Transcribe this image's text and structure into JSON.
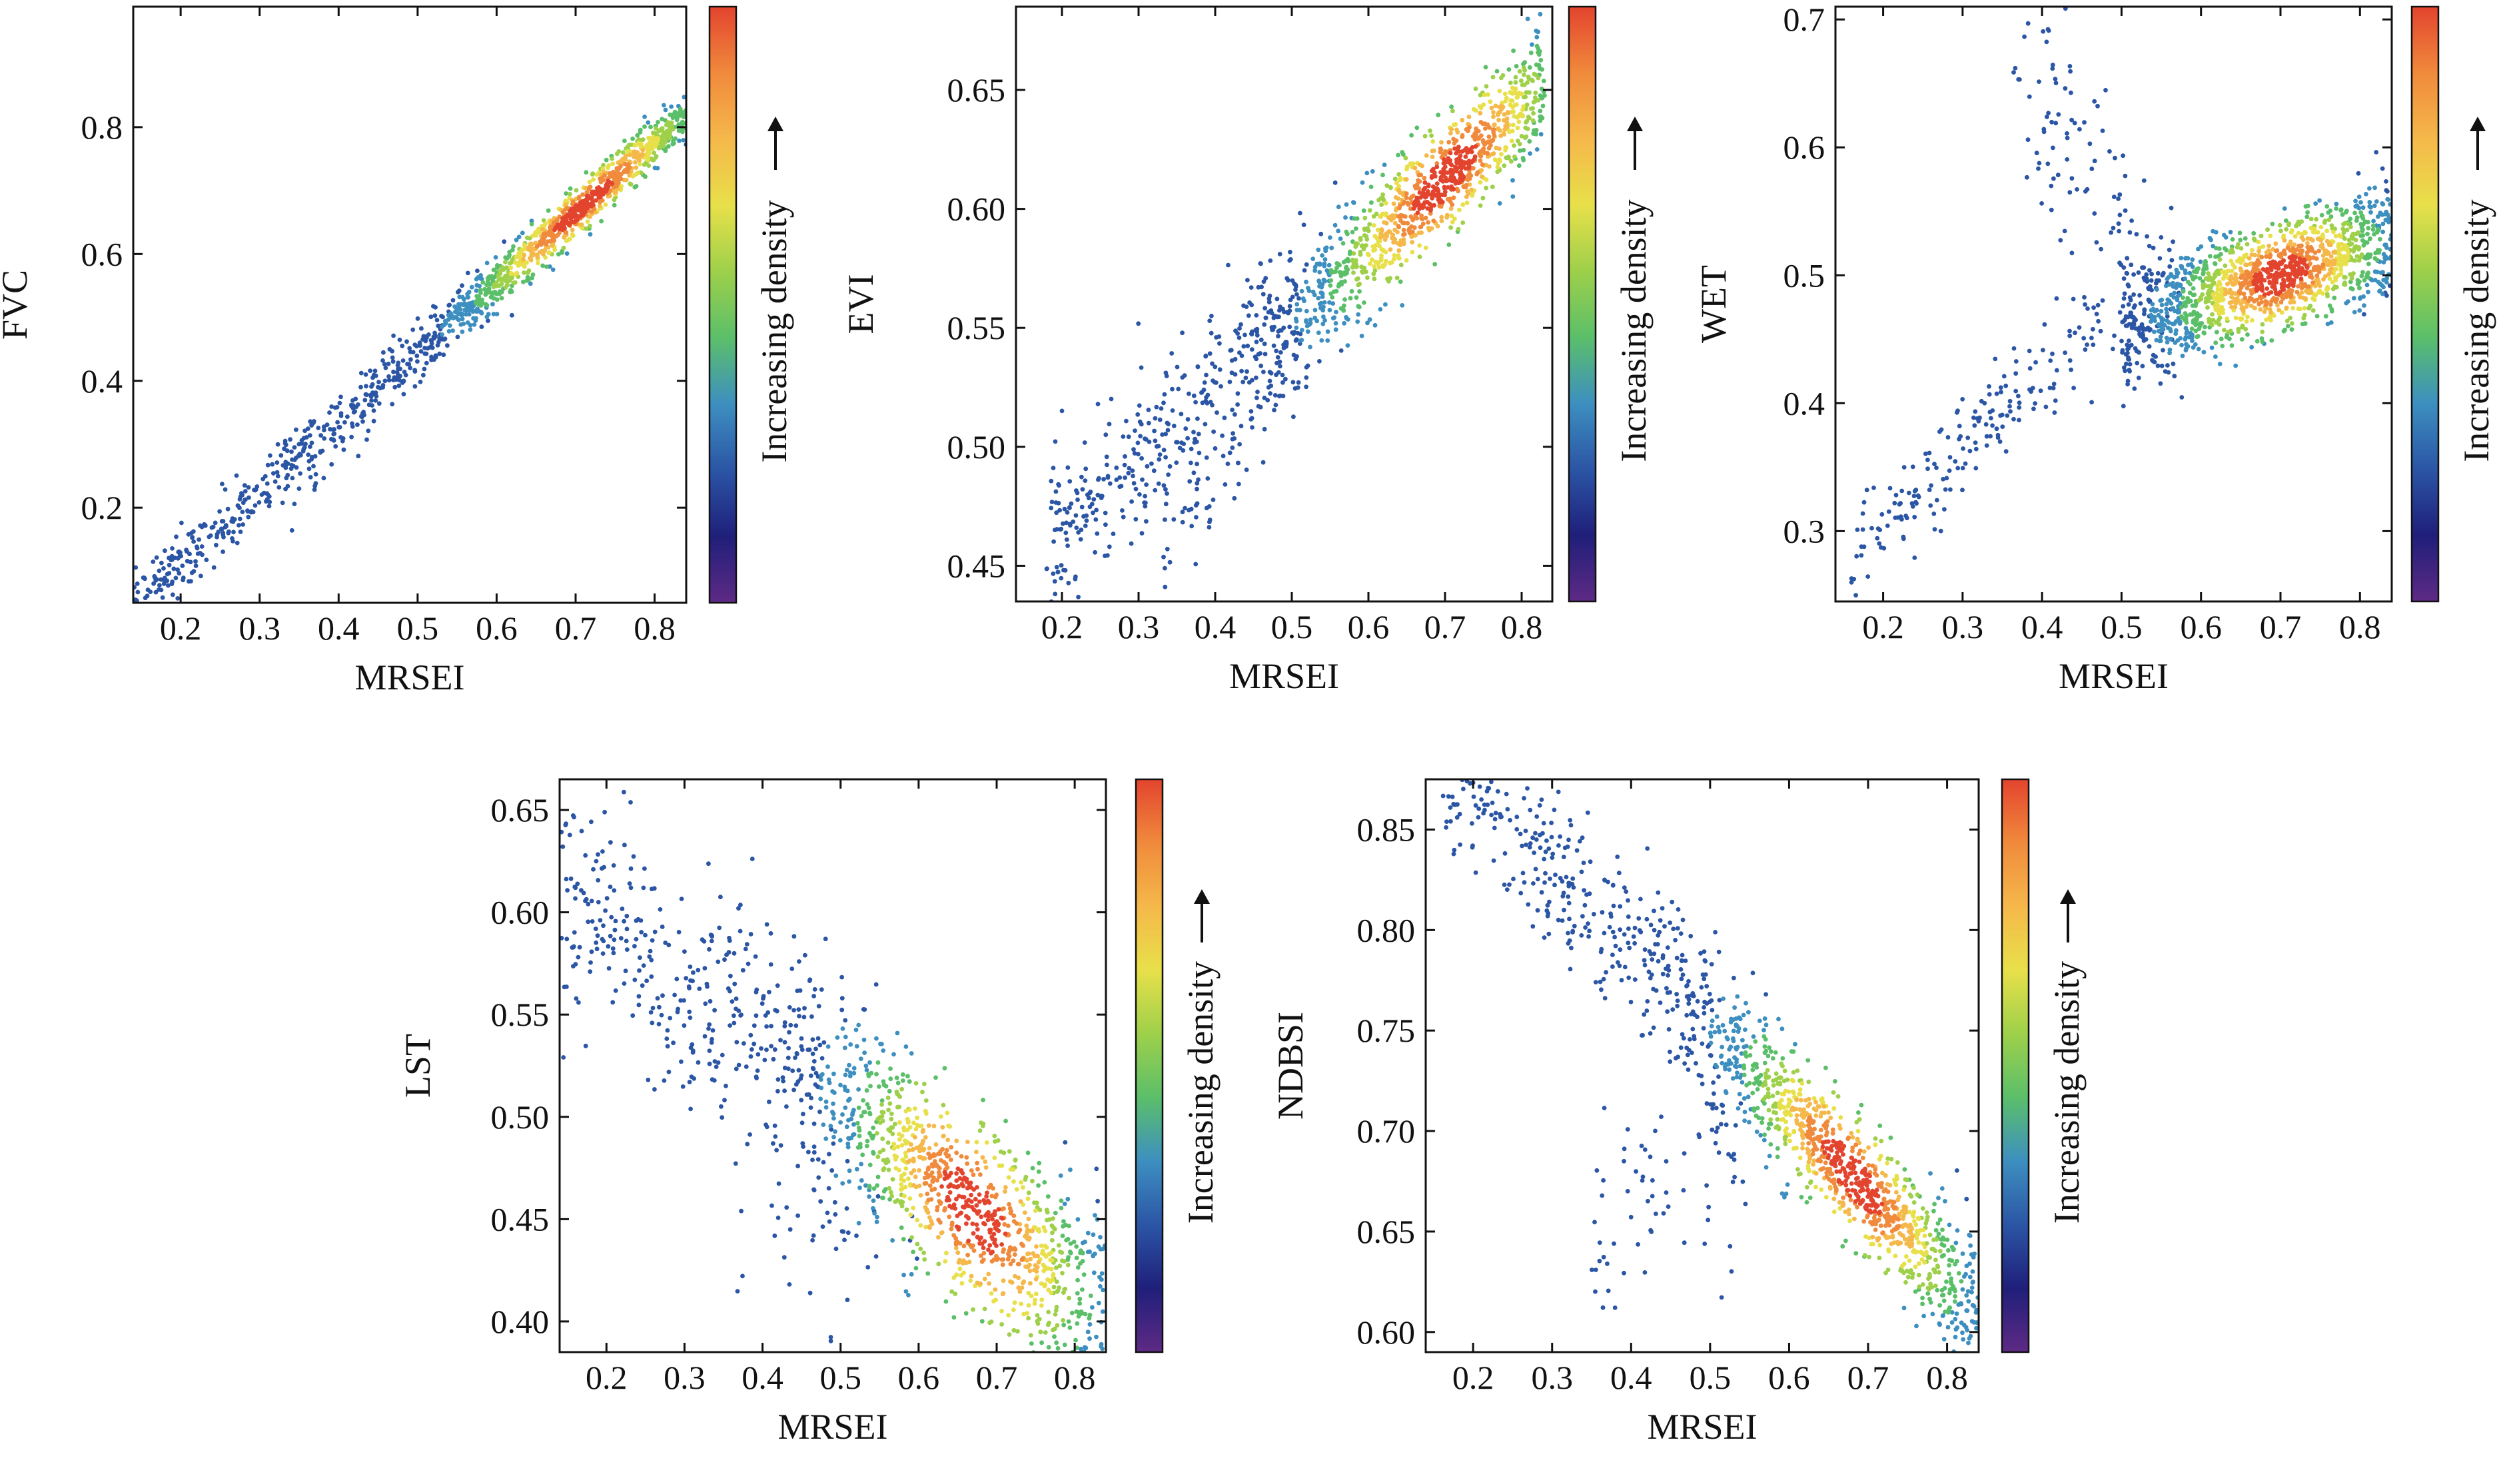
{
  "colorbar": {
    "label": "Increasing density",
    "colors": [
      "#5e2a84",
      "#1f1f7a",
      "#2b55a5",
      "#3d8fc0",
      "#5bbf6a",
      "#9ed04a",
      "#e8e04a",
      "#f5b84a",
      "#f08a3c",
      "#e3442e"
    ]
  },
  "chart_data": [
    {
      "id": "fvc",
      "type": "scatter",
      "xlabel": "MRSEI",
      "ylabel": "FVC",
      "xlim": [
        0.14,
        0.84
      ],
      "ylim": [
        0.05,
        0.99
      ],
      "xticks": [
        {
          "v": 0.2,
          "label": "0.2"
        },
        {
          "v": 0.3,
          "label": "0.3"
        },
        {
          "v": 0.4,
          "label": "0.4"
        },
        {
          "v": 0.5,
          "label": "0.5"
        },
        {
          "v": 0.6,
          "label": "0.6"
        },
        {
          "v": 0.7,
          "label": "0.7"
        },
        {
          "v": 0.8,
          "label": "0.8"
        }
      ],
      "yticks": [
        {
          "v": 0.2,
          "label": "0.2"
        },
        {
          "v": 0.4,
          "label": "0.4"
        },
        {
          "v": 0.6,
          "label": "0.6"
        },
        {
          "v": 0.8,
          "label": "0.8"
        }
      ],
      "trend": {
        "x0": 0.14,
        "x1": 0.84,
        "slope": 1.1,
        "intercept": -0.105,
        "spread": 0.018,
        "density_center": 0.71,
        "density_width": 0.11
      },
      "extra_clusters": [
        {
          "x": [
            0.34,
            0.48
          ],
          "y0": 0.2,
          "slope": 1.5,
          "spread": 0.025,
          "n": 25
        }
      ]
    },
    {
      "id": "evi",
      "type": "scatter",
      "xlabel": "MRSEI",
      "ylabel": "EVI",
      "xlim": [
        0.14,
        0.84
      ],
      "ylim": [
        0.435,
        0.685
      ],
      "xticks": [
        {
          "v": 0.2,
          "label": "0.2"
        },
        {
          "v": 0.3,
          "label": "0.3"
        },
        {
          "v": 0.4,
          "label": "0.4"
        },
        {
          "v": 0.5,
          "label": "0.5"
        },
        {
          "v": 0.6,
          "label": "0.6"
        },
        {
          "v": 0.7,
          "label": "0.7"
        },
        {
          "v": 0.8,
          "label": "0.8"
        }
      ],
      "yticks": [
        {
          "v": 0.45,
          "label": "0.45"
        },
        {
          "v": 0.5,
          "label": "0.50"
        },
        {
          "v": 0.55,
          "label": "0.55"
        },
        {
          "v": 0.6,
          "label": "0.60"
        },
        {
          "v": 0.65,
          "label": "0.65"
        }
      ],
      "trend": {
        "x0": 0.18,
        "x1": 0.83,
        "slope": 0.3,
        "intercept": 0.403,
        "spread": 0.012,
        "density_center": 0.7,
        "density_width": 0.12
      },
      "extra_clusters": [
        {
          "x": [
            0.33,
            0.52
          ],
          "y0": 0.455,
          "slope": 0.45,
          "spread": 0.012,
          "n": 60
        }
      ]
    },
    {
      "id": "wet",
      "type": "scatter",
      "xlabel": "MRSEI",
      "ylabel": "WET",
      "xlim": [
        0.14,
        0.84
      ],
      "ylim": [
        0.245,
        0.71
      ],
      "xticks": [
        {
          "v": 0.2,
          "label": "0.2"
        },
        {
          "v": 0.3,
          "label": "0.3"
        },
        {
          "v": 0.4,
          "label": "0.4"
        },
        {
          "v": 0.5,
          "label": "0.5"
        },
        {
          "v": 0.6,
          "label": "0.6"
        },
        {
          "v": 0.7,
          "label": "0.7"
        },
        {
          "v": 0.8,
          "label": "0.8"
        }
      ],
      "yticks": [
        {
          "v": 0.3,
          "label": "0.3"
        },
        {
          "v": 0.4,
          "label": "0.4"
        },
        {
          "v": 0.5,
          "label": "0.5"
        },
        {
          "v": 0.6,
          "label": "0.6"
        },
        {
          "v": 0.7,
          "label": "0.7"
        }
      ],
      "trend": {
        "x0": 0.5,
        "x1": 0.84,
        "slope": 0.2,
        "intercept": 0.36,
        "spread": 0.018,
        "density_center": 0.7,
        "density_width": 0.1
      },
      "extra_clusters": [
        {
          "x": [
            0.16,
            0.5
          ],
          "y0": 0.275,
          "slope": 0.62,
          "spread": 0.02,
          "n": 190
        },
        {
          "x": [
            0.36,
            0.58
          ],
          "y0": 0.66,
          "slope": -0.85,
          "spread": 0.045,
          "n": 110
        }
      ]
    },
    {
      "id": "lst",
      "type": "scatter",
      "xlabel": "MRSEI",
      "ylabel": "LST",
      "xlim": [
        0.14,
        0.84
      ],
      "ylim": [
        0.385,
        0.665
      ],
      "xticks": [
        {
          "v": 0.2,
          "label": "0.2"
        },
        {
          "v": 0.3,
          "label": "0.3"
        },
        {
          "v": 0.4,
          "label": "0.4"
        },
        {
          "v": 0.5,
          "label": "0.5"
        },
        {
          "v": 0.6,
          "label": "0.6"
        },
        {
          "v": 0.7,
          "label": "0.7"
        },
        {
          "v": 0.8,
          "label": "0.8"
        }
      ],
      "yticks": [
        {
          "v": 0.4,
          "label": "0.40"
        },
        {
          "v": 0.45,
          "label": "0.45"
        },
        {
          "v": 0.5,
          "label": "0.50"
        },
        {
          "v": 0.55,
          "label": "0.55"
        },
        {
          "v": 0.6,
          "label": "0.60"
        },
        {
          "v": 0.65,
          "label": "0.65"
        }
      ],
      "trend": {
        "x0": 0.14,
        "x1": 0.84,
        "slope": -0.3,
        "intercept": 0.655,
        "spread": 0.022,
        "density_center": 0.67,
        "density_width": 0.12
      },
      "extra_clusters": [
        {
          "x": [
            0.36,
            0.6
          ],
          "y0": 0.445,
          "slope": 0.0,
          "spread": 0.025,
          "n": 40
        }
      ]
    },
    {
      "id": "ndbsi",
      "type": "scatter",
      "xlabel": "MRSEI",
      "ylabel": "NDBSI",
      "xlim": [
        0.14,
        0.84
      ],
      "ylim": [
        0.59,
        0.875
      ],
      "xticks": [
        {
          "v": 0.2,
          "label": "0.2"
        },
        {
          "v": 0.3,
          "label": "0.3"
        },
        {
          "v": 0.4,
          "label": "0.4"
        },
        {
          "v": 0.5,
          "label": "0.5"
        },
        {
          "v": 0.6,
          "label": "0.6"
        },
        {
          "v": 0.7,
          "label": "0.7"
        },
        {
          "v": 0.8,
          "label": "0.8"
        }
      ],
      "yticks": [
        {
          "v": 0.6,
          "label": "0.60"
        },
        {
          "v": 0.65,
          "label": "0.65"
        },
        {
          "v": 0.7,
          "label": "0.70"
        },
        {
          "v": 0.75,
          "label": "0.75"
        },
        {
          "v": 0.8,
          "label": "0.80"
        },
        {
          "v": 0.85,
          "label": "0.85"
        }
      ],
      "trend": {
        "x0": 0.16,
        "x1": 0.84,
        "slope": -0.4,
        "intercept": 0.95,
        "spread": 0.015,
        "density_center": 0.68,
        "density_width": 0.11
      },
      "extra_clusters": [
        {
          "x": [
            0.35,
            0.55
          ],
          "y0": 0.64,
          "slope": 0.3,
          "spread": 0.03,
          "n": 75
        }
      ]
    }
  ]
}
